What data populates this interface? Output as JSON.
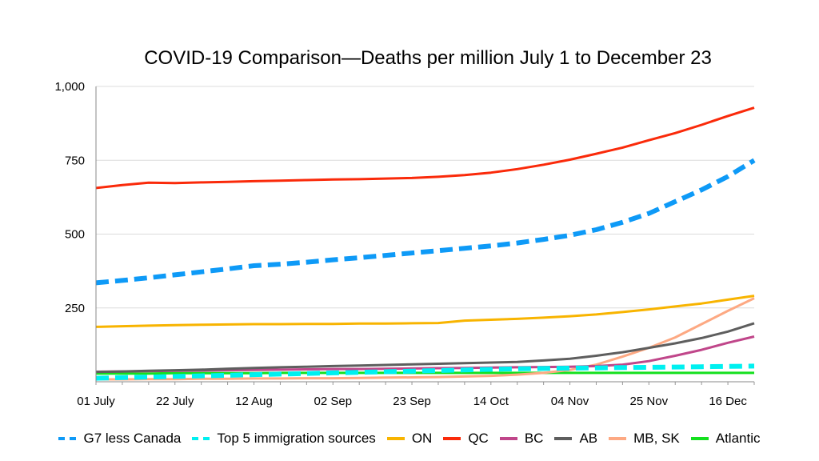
{
  "chart_data": {
    "type": "line",
    "title": "COVID-19 Comparison—Deaths per million July 1 to December 23",
    "xlabel": "",
    "ylabel": "",
    "ylim": [
      0,
      1000
    ],
    "yticks": [
      0,
      250,
      500,
      750,
      1000
    ],
    "ytick_labels": [
      "",
      "250",
      "500",
      "750",
      "1,000"
    ],
    "grid": true,
    "legend_position": "bottom",
    "x_days": [
      0,
      7,
      14,
      21,
      28,
      35,
      42,
      49,
      56,
      63,
      70,
      77,
      84,
      91,
      98,
      105,
      112,
      119,
      126,
      133,
      140,
      147,
      154,
      161,
      168,
      175
    ],
    "xtick_days": [
      0,
      21,
      42,
      63,
      84,
      105,
      126,
      147,
      168
    ],
    "xtick_labels": [
      "01 July",
      "22 July",
      "12 Aug",
      "02 Sep",
      "23 Sep",
      "14 Oct",
      "04 Nov",
      "25 Nov",
      "16 Dec"
    ],
    "series": [
      {
        "name": "G7 less Canada",
        "color": "#0e9af7",
        "dashed": true,
        "width": 6,
        "values": [
          335,
          343,
          352,
          362,
          372,
          382,
          393,
          398,
          405,
          413,
          420,
          428,
          436,
          444,
          452,
          460,
          470,
          482,
          496,
          515,
          540,
          570,
          610,
          650,
          695,
          750
        ]
      },
      {
        "name": "Top 5 immigration sources",
        "color": "#00f0f0",
        "dashed": true,
        "width": 6,
        "values": [
          12,
          14,
          16,
          18,
          20,
          22,
          24,
          26,
          28,
          30,
          32,
          34,
          36,
          38,
          40,
          42,
          44,
          45,
          46,
          47,
          48,
          49,
          50,
          51,
          52,
          53
        ]
      },
      {
        "name": "ON",
        "color": "#f8b400",
        "dashed": false,
        "width": 3,
        "values": [
          186,
          188,
          190,
          192,
          193,
          194,
          195,
          195,
          196,
          196,
          197,
          197,
          198,
          199,
          207,
          210,
          213,
          217,
          222,
          228,
          236,
          245,
          255,
          265,
          278,
          291
        ]
      },
      {
        "name": "QC",
        "color": "#fa2a0a",
        "dashed": false,
        "width": 3,
        "values": [
          656,
          666,
          674,
          673,
          675,
          677,
          679,
          681,
          683,
          685,
          686,
          688,
          690,
          694,
          700,
          708,
          720,
          735,
          752,
          772,
          793,
          818,
          842,
          870,
          900,
          928
        ]
      },
      {
        "name": "BC",
        "color": "#c0468a",
        "dashed": false,
        "width": 3,
        "values": [
          34,
          35,
          36,
          37,
          38,
          39,
          40,
          41,
          42,
          43,
          43,
          44,
          45,
          46,
          47,
          48,
          49,
          50,
          51,
          53,
          58,
          70,
          88,
          108,
          132,
          153
        ]
      },
      {
        "name": "AB",
        "color": "#5e5e5e",
        "dashed": false,
        "width": 3,
        "values": [
          33,
          35,
          37,
          39,
          41,
          44,
          47,
          49,
          51,
          53,
          55,
          57,
          59,
          61,
          63,
          65,
          67,
          72,
          78,
          88,
          100,
          115,
          130,
          148,
          170,
          198
        ]
      },
      {
        "name": "MB, SK",
        "color": "#fda983",
        "dashed": false,
        "width": 3,
        "values": [
          8,
          8,
          9,
          9,
          10,
          10,
          11,
          11,
          12,
          12,
          13,
          14,
          15,
          16,
          18,
          20,
          24,
          30,
          40,
          58,
          85,
          115,
          150,
          195,
          240,
          283
        ]
      },
      {
        "name": "Atlantic",
        "color": "#14e01e",
        "dashed": false,
        "width": 3,
        "values": [
          28,
          28,
          28,
          29,
          29,
          29,
          29,
          30,
          30,
          30,
          30,
          30,
          30,
          30,
          30,
          30,
          30,
          30,
          30,
          30,
          30,
          30,
          30,
          30,
          30,
          30
        ]
      }
    ]
  }
}
